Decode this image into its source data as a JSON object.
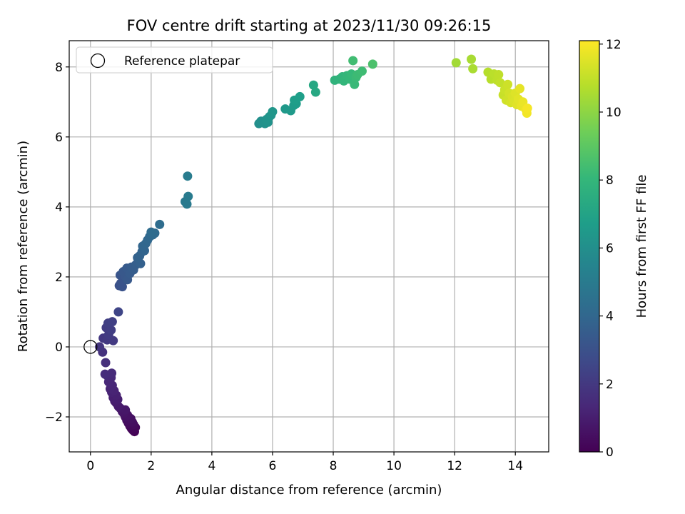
{
  "chart_data": {
    "type": "scatter",
    "title": "FOV centre drift starting at 2023/11/30 09:26:15",
    "xlabel": "Angular distance from reference (arcmin)",
    "ylabel": "Rotation from reference (arcmin)",
    "xlim": [
      -0.7,
      15.1
    ],
    "ylim": [
      -3.0,
      8.75
    ],
    "xticks": [
      0,
      2,
      4,
      6,
      8,
      10,
      12,
      14
    ],
    "yticks": [
      -2,
      0,
      2,
      4,
      6,
      8
    ],
    "ytick_labels": [
      "−2",
      "0",
      "2",
      "4",
      "6",
      "8"
    ],
    "grid": true,
    "colormap": "viridis",
    "colorbar": {
      "label": "Hours from first FF file",
      "range": [
        0,
        12.1
      ],
      "ticks": [
        0,
        2,
        4,
        6,
        8,
        10,
        12
      ]
    },
    "legend": {
      "position": "top-left",
      "entries": [
        "Reference platepar"
      ]
    },
    "reference_point": {
      "x": 0,
      "y": 0,
      "marker": "open-circle",
      "color": "#000000"
    },
    "series": [
      {
        "points": [
          [
            1.45,
            -2.42,
            0.05
          ],
          [
            1.4,
            -2.38,
            0.1
          ],
          [
            1.35,
            -2.33,
            0.15
          ],
          [
            1.48,
            -2.3,
            0.2
          ],
          [
            1.3,
            -2.26,
            0.25
          ],
          [
            1.42,
            -2.22,
            0.3
          ],
          [
            1.25,
            -2.18,
            0.35
          ],
          [
            1.38,
            -2.15,
            0.4
          ],
          [
            1.2,
            -2.1,
            0.45
          ],
          [
            1.33,
            -2.05,
            0.5
          ],
          [
            1.15,
            -2.0,
            0.55
          ],
          [
            1.22,
            -1.95,
            0.6
          ],
          [
            1.1,
            -1.9,
            0.65
          ],
          [
            1.05,
            -1.85,
            0.7
          ],
          [
            1.15,
            -1.8,
            0.75
          ],
          [
            0.98,
            -1.75,
            0.8
          ],
          [
            0.92,
            -1.7,
            0.85
          ],
          [
            0.85,
            -1.6,
            0.9
          ],
          [
            0.8,
            -1.55,
            0.95
          ],
          [
            0.9,
            -1.5,
            1.0
          ],
          [
            0.75,
            -1.45,
            1.05
          ],
          [
            0.85,
            -1.38,
            1.1
          ],
          [
            0.7,
            -1.3,
            1.15
          ],
          [
            0.78,
            -1.25,
            1.2
          ],
          [
            0.65,
            -1.2,
            1.25
          ],
          [
            0.72,
            -1.1,
            1.3
          ],
          [
            0.6,
            -1.0,
            1.35
          ],
          [
            0.68,
            -0.88,
            1.4
          ],
          [
            0.55,
            -0.82,
            1.45
          ],
          [
            0.7,
            -0.75,
            1.5
          ],
          [
            0.48,
            -0.78,
            1.55
          ],
          [
            0.5,
            -0.45,
            1.65
          ],
          [
            0.4,
            -0.15,
            1.75
          ],
          [
            0.3,
            0.0,
            1.85
          ],
          [
            0.42,
            0.25,
            1.95
          ],
          [
            0.55,
            0.2,
            2.0
          ],
          [
            0.75,
            0.18,
            2.05
          ],
          [
            0.6,
            0.35,
            2.1
          ],
          [
            0.52,
            0.55,
            2.15
          ],
          [
            0.68,
            0.48,
            2.2
          ],
          [
            0.58,
            0.68,
            2.25
          ],
          [
            0.72,
            0.72,
            2.3
          ],
          [
            0.92,
            1.0,
            2.5
          ],
          [
            0.95,
            1.75,
            3.0
          ],
          [
            1.0,
            1.82,
            3.05
          ],
          [
            1.05,
            1.72,
            3.1
          ],
          [
            1.1,
            1.9,
            3.15
          ],
          [
            0.98,
            2.05,
            3.2
          ],
          [
            1.15,
            2.0,
            3.25
          ],
          [
            1.08,
            2.15,
            3.3
          ],
          [
            1.22,
            1.92,
            3.35
          ],
          [
            1.2,
            2.25,
            3.4
          ],
          [
            1.3,
            2.1,
            3.45
          ],
          [
            1.35,
            2.28,
            3.5
          ],
          [
            1.42,
            2.2,
            3.55
          ],
          [
            1.5,
            2.35,
            3.6
          ],
          [
            1.58,
            2.42,
            3.65
          ],
          [
            1.65,
            2.38,
            3.7
          ],
          [
            1.55,
            2.55,
            3.75
          ],
          [
            1.62,
            2.6,
            3.8
          ],
          [
            1.7,
            2.72,
            3.85
          ],
          [
            1.78,
            2.75,
            3.9
          ],
          [
            1.72,
            2.88,
            3.95
          ],
          [
            1.82,
            2.95,
            4.0
          ],
          [
            1.88,
            3.05,
            4.05
          ],
          [
            1.95,
            3.15,
            4.1
          ],
          [
            2.05,
            3.2,
            4.15
          ],
          [
            2.12,
            3.25,
            4.2
          ],
          [
            2.0,
            3.28,
            4.25
          ],
          [
            2.28,
            3.5,
            4.3
          ],
          [
            3.12,
            4.15,
            4.9
          ],
          [
            3.18,
            4.08,
            4.95
          ],
          [
            3.22,
            4.3,
            5.0
          ],
          [
            3.2,
            4.88,
            5.05
          ],
          [
            5.55,
            6.38,
            6.0
          ],
          [
            5.62,
            6.45,
            6.05
          ],
          [
            5.75,
            6.38,
            6.1
          ],
          [
            5.85,
            6.42,
            6.15
          ],
          [
            5.8,
            6.5,
            6.2
          ],
          [
            5.9,
            6.58,
            6.25
          ],
          [
            5.95,
            6.62,
            6.3
          ],
          [
            6.0,
            6.72,
            6.35
          ],
          [
            6.42,
            6.8,
            6.5
          ],
          [
            6.6,
            6.75,
            6.55
          ],
          [
            6.7,
            6.9,
            6.6
          ],
          [
            6.78,
            6.95,
            6.65
          ],
          [
            6.72,
            7.05,
            6.7
          ],
          [
            6.9,
            7.15,
            6.75
          ],
          [
            7.35,
            7.48,
            7.2
          ],
          [
            7.42,
            7.28,
            7.25
          ],
          [
            8.05,
            7.62,
            7.8
          ],
          [
            8.2,
            7.65,
            7.85
          ],
          [
            8.3,
            7.72,
            7.9
          ],
          [
            8.35,
            7.6,
            7.95
          ],
          [
            8.45,
            7.75,
            8.0
          ],
          [
            8.55,
            7.65,
            8.05
          ],
          [
            8.6,
            7.8,
            8.1
          ],
          [
            8.7,
            7.5,
            8.15
          ],
          [
            8.75,
            7.7,
            8.2
          ],
          [
            8.8,
            7.78,
            8.25
          ],
          [
            8.95,
            7.88,
            8.3
          ],
          [
            8.65,
            8.18,
            8.35
          ],
          [
            9.3,
            8.08,
            8.6
          ],
          [
            12.05,
            8.12,
            10.4
          ],
          [
            12.55,
            8.22,
            10.5
          ],
          [
            12.6,
            7.95,
            10.55
          ],
          [
            13.1,
            7.85,
            10.75
          ],
          [
            13.2,
            7.65,
            10.8
          ],
          [
            13.3,
            7.8,
            10.85
          ],
          [
            13.4,
            7.62,
            10.9
          ],
          [
            13.45,
            7.78,
            10.95
          ],
          [
            13.5,
            7.55,
            11.0
          ],
          [
            13.6,
            7.2,
            11.1
          ],
          [
            13.65,
            7.35,
            11.15
          ],
          [
            13.75,
            7.5,
            11.2
          ],
          [
            13.7,
            7.05,
            11.25
          ],
          [
            13.8,
            7.25,
            11.3
          ],
          [
            13.85,
            6.98,
            11.35
          ],
          [
            13.9,
            7.15,
            11.4
          ],
          [
            13.95,
            7.02,
            11.45
          ],
          [
            14.0,
            7.25,
            11.5
          ],
          [
            14.05,
            6.92,
            11.55
          ],
          [
            14.1,
            7.08,
            11.6
          ],
          [
            14.15,
            7.38,
            11.65
          ],
          [
            14.2,
            6.88,
            11.7
          ],
          [
            14.25,
            7.0,
            11.75
          ],
          [
            14.35,
            6.78,
            11.85
          ],
          [
            14.38,
            6.68,
            11.9
          ],
          [
            14.4,
            6.82,
            11.95
          ]
        ]
      }
    ]
  }
}
